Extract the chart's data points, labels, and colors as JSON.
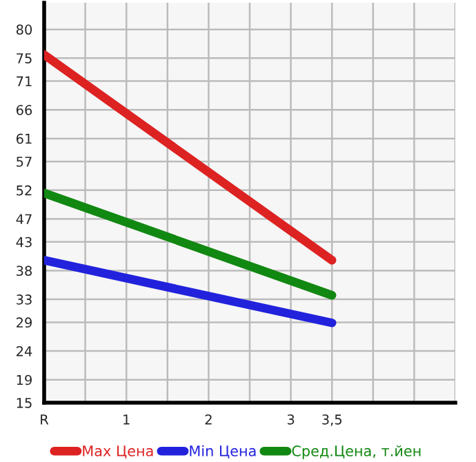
{
  "chart_data": {
    "type": "line",
    "x": [
      0,
      3.5
    ],
    "xlim": [
      0,
      5
    ],
    "xticks": [
      {
        "value": 0,
        "label": "R"
      },
      {
        "value": 0.5,
        "label": null
      },
      1,
      {
        "value": 1.5,
        "label": null
      },
      2,
      {
        "value": 2.5,
        "label": null
      },
      3,
      {
        "value": 3.5,
        "label": "3,5"
      },
      {
        "value": 4,
        "label": null
      },
      {
        "value": 4.5,
        "label": null
      },
      {
        "value": 5,
        "label": null
      }
    ],
    "ylim": [
      15,
      84.64
    ],
    "yticks": [
      15,
      19,
      24,
      29,
      33,
      38,
      43,
      47,
      52,
      57,
      61,
      66,
      71,
      75,
      80
    ],
    "series": [
      {
        "name": "Max Цена",
        "color": "#dd2222",
        "values": [
          75.6,
          39.8
        ]
      },
      {
        "name": "Min Цена",
        "color": "#2222dd",
        "values": [
          39.8,
          28.9
        ]
      },
      {
        "name": "Сред.Цена, т.йен",
        "color": "#118811",
        "values": [
          51.5,
          33.7
        ]
      }
    ],
    "grid": true,
    "legend": "bottom",
    "marker": "none",
    "line_style": "solid"
  }
}
